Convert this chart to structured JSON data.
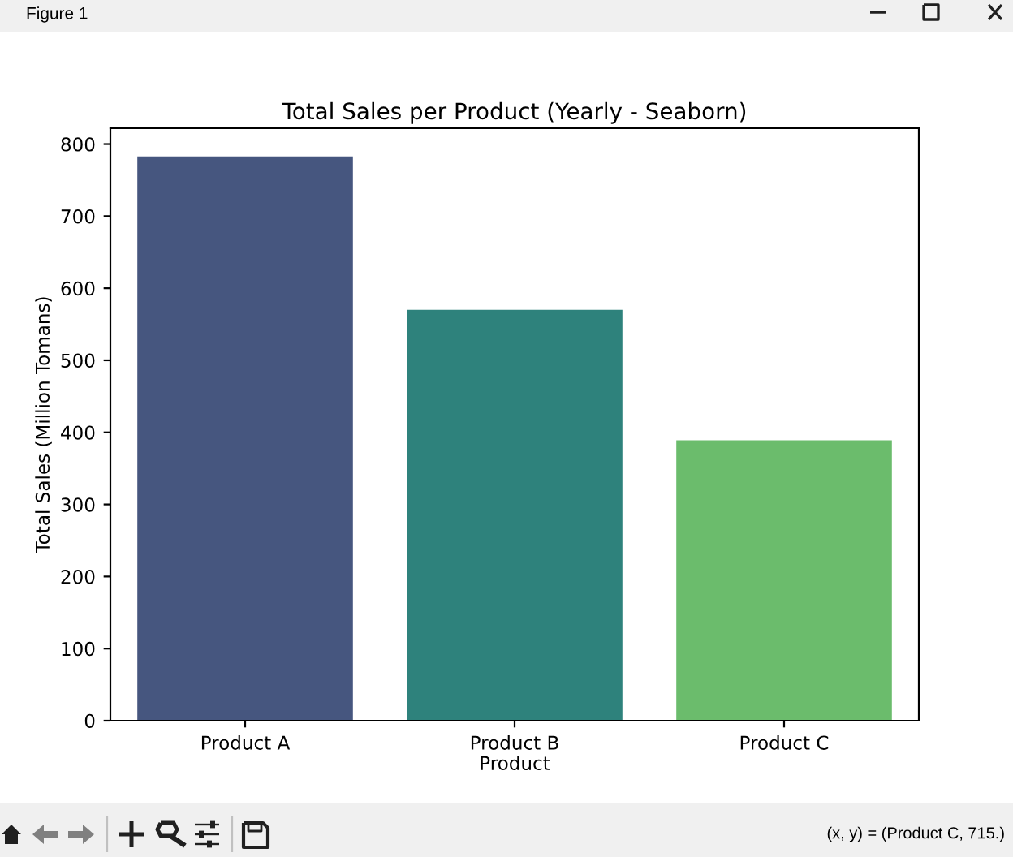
{
  "chart_data": {
    "type": "bar",
    "title": "Total Sales per Product (Yearly - Seaborn)",
    "xlabel": "Product",
    "ylabel": "Total Sales (Million Tomans)",
    "categories": [
      "Product A",
      "Product B",
      "Product C"
    ],
    "values": [
      783,
      570,
      389
    ],
    "colors": [
      "#46567f",
      "#2e827c",
      "#6bbc6c"
    ],
    "ylim": [
      0,
      822
    ],
    "yticks": [
      0,
      100,
      200,
      300,
      400,
      500,
      600,
      700,
      800
    ],
    "annotations": [
      "Figure 1",
      "(x, y) = (Product C, 715.)"
    ]
  }
}
